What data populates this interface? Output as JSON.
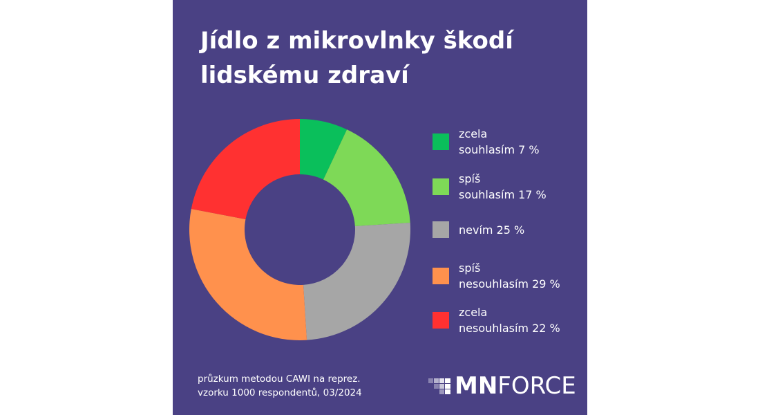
{
  "title": "Jídlo z mikrovlnky škodí\nlidskému zdraví",
  "chart_data": {
    "type": "pie",
    "subtype": "donut",
    "categories": [
      "zcela\nsouhlasím",
      "spíš\nsouhlasím",
      "nevím",
      "spíš\nnesouhlasím",
      "zcela\nnesouhlasím"
    ],
    "values": [
      7,
      17,
      25,
      29,
      22
    ],
    "unit": "%",
    "colors": [
      "#0abf5b",
      "#7ed957",
      "#a6a6a6",
      "#ff914d",
      "#ff3131"
    ],
    "legend_position": "right"
  },
  "legend": [
    {
      "label": "zcela\nsouhlasím 7 %",
      "color": "#0abf5b"
    },
    {
      "label": "spíš\nsouhlasím 17 %",
      "color": "#7ed957"
    },
    {
      "label": "nevím 25 %",
      "color": "#a6a6a6"
    },
    {
      "label": "spíš\nnesouhlasím 29 %",
      "color": "#ff914d"
    },
    {
      "label": "zcela\nnesouhlasím 22 %",
      "color": "#ff3131"
    }
  ],
  "footnote": "průzkum metodou CAWI na reprez.\nvzorku 1000 respondentů, 03/2024",
  "logo": {
    "bold": "MN",
    "light": "FORCE"
  },
  "colors": {
    "background": "#4a4184",
    "text": "#ffffff"
  }
}
